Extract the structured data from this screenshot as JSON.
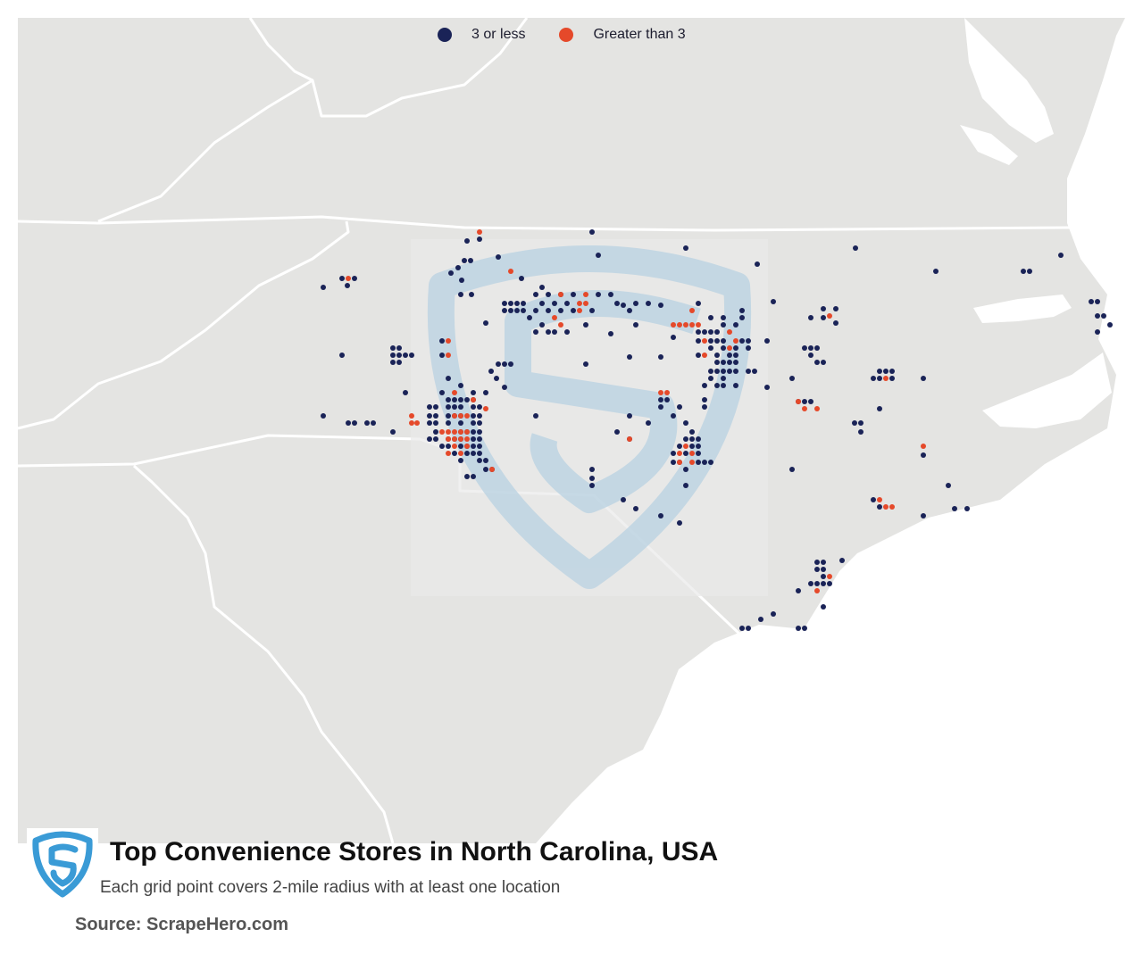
{
  "legend": {
    "low": {
      "label": "3 or less",
      "color": "#1a2357"
    },
    "high": {
      "label": "Greater than 3",
      "color": "#e5492a"
    }
  },
  "title": "Top Convenience Stores in North Carolina, USA",
  "subtitle": "Each grid point covers 2-mile radius with at least one location",
  "source": "Source: ScrapeHero.com",
  "colors": {
    "land": "#e4e4e2",
    "border": "#ffffff",
    "water": "#ffffff",
    "watermark": "#b9d2e2",
    "logo": "#3a9bd6"
  },
  "icons": {
    "logo": "scrapehero-shield-icon",
    "watermark": "scrapehero-shield-watermark-icon"
  }
}
